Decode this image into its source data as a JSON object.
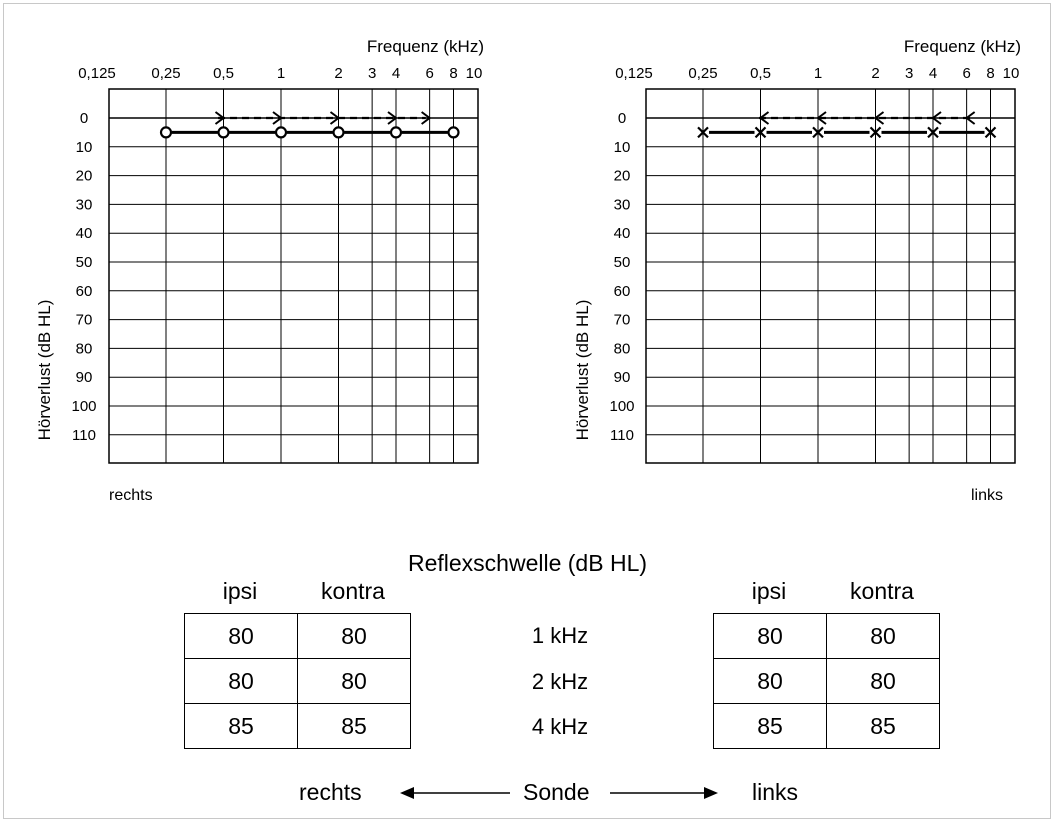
{
  "audiograms": [
    {
      "side_label": "rechts",
      "x_title": "Frequenz (kHz)",
      "y_title": "Hörverlust (dB HL)",
      "freq_tick_labels": [
        "0,125",
        "0,25",
        "0,5",
        "1",
        "2",
        "3",
        "4",
        "6",
        "8",
        "10"
      ],
      "db_tick_labels": [
        "0",
        "10",
        "20",
        "30",
        "40",
        "50",
        "60",
        "70",
        "80",
        "90",
        "100",
        "110"
      ]
    },
    {
      "side_label": "links",
      "x_title": "Frequenz (kHz)",
      "y_title": "Hörverlust (dB HL)",
      "freq_tick_labels": [
        "0,125",
        "0,25",
        "0,5",
        "1",
        "2",
        "3",
        "4",
        "6",
        "8",
        "10"
      ],
      "db_tick_labels": [
        "0",
        "10",
        "20",
        "30",
        "40",
        "50",
        "60",
        "70",
        "80",
        "90",
        "100",
        "110"
      ]
    }
  ],
  "reflex": {
    "title": "Reflexschwelle (dB HL)",
    "col_ipsi": "ipsi",
    "col_kontra": "kontra",
    "freq_labels": [
      "1 kHz",
      "2 kHz",
      "4 kHz"
    ],
    "right": [
      [
        "80",
        "80"
      ],
      [
        "80",
        "80"
      ],
      [
        "85",
        "85"
      ]
    ],
    "left": [
      [
        "80",
        "80"
      ],
      [
        "80",
        "80"
      ],
      [
        "85",
        "85"
      ]
    ],
    "probe": {
      "left_label": "rechts",
      "center_label": "Sonde",
      "right_label": "links"
    }
  },
  "chart_data": [
    {
      "type": "line",
      "ear": "rechts",
      "x_scale": "log",
      "y_inverted": true,
      "xlim": [
        0.125,
        10
      ],
      "ylim": [
        -10,
        120
      ],
      "grid": true,
      "series": [
        {
          "marker": "circle",
          "line": "solid",
          "x": [
            0.25,
            0.5,
            1,
            2,
            4,
            8
          ],
          "y": [
            5,
            5,
            5,
            5,
            5,
            5
          ]
        },
        {
          "marker": "right-bracket",
          "line": "dashed",
          "x": [
            0.5,
            1,
            2,
            4,
            6
          ],
          "y": [
            0,
            0,
            0,
            0,
            0
          ]
        }
      ]
    },
    {
      "type": "line",
      "ear": "links",
      "x_scale": "log",
      "y_inverted": true,
      "xlim": [
        0.125,
        10
      ],
      "ylim": [
        -10,
        120
      ],
      "grid": true,
      "series": [
        {
          "marker": "cross",
          "line": "solid",
          "x": [
            0.25,
            0.5,
            1,
            2,
            4,
            8
          ],
          "y": [
            5,
            5,
            5,
            5,
            5,
            5
          ]
        },
        {
          "marker": "left-bracket",
          "line": "dashed",
          "x": [
            0.5,
            1,
            2,
            4,
            6
          ],
          "y": [
            0,
            0,
            0,
            0,
            0
          ]
        }
      ]
    }
  ]
}
